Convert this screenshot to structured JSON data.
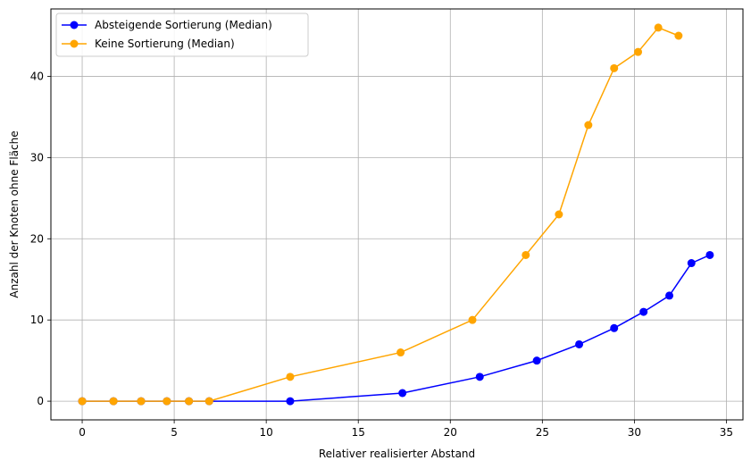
{
  "chart_data": {
    "type": "line",
    "title": "",
    "xlabel": "Relativer realisierter Abstand",
    "ylabel": "Anzahl der Knoten ohne Fläche",
    "xlim": [
      -1.7,
      35.9
    ],
    "ylim": [
      -2.3,
      48.3
    ],
    "xticks": [
      0,
      5,
      10,
      15,
      20,
      25,
      30,
      35
    ],
    "yticks": [
      0,
      10,
      20,
      30,
      40
    ],
    "grid": true,
    "legend_position": "top-left",
    "series": [
      {
        "name": "Absteigende Sortierung (Median)",
        "color": "#0000ff",
        "x": [
          0,
          1.7,
          3.2,
          4.6,
          5.8,
          6.9,
          11.3,
          17.4,
          21.6,
          24.7,
          27.0,
          28.9,
          30.5,
          31.9,
          33.1,
          34.1
        ],
        "y": [
          0,
          0,
          0,
          0,
          0,
          0,
          0,
          1,
          3,
          5,
          7,
          9,
          11,
          13,
          17,
          18
        ]
      },
      {
        "name": "Keine Sortierung (Median)",
        "color": "#ffa500",
        "x": [
          0,
          1.7,
          3.2,
          4.6,
          5.8,
          6.9,
          11.3,
          17.3,
          21.2,
          24.1,
          25.9,
          27.5,
          28.9,
          30.2,
          31.3,
          32.4
        ],
        "y": [
          0,
          0,
          0,
          0,
          0,
          0,
          3,
          6,
          10,
          18,
          23,
          34,
          41,
          43,
          46,
          45
        ]
      }
    ]
  }
}
